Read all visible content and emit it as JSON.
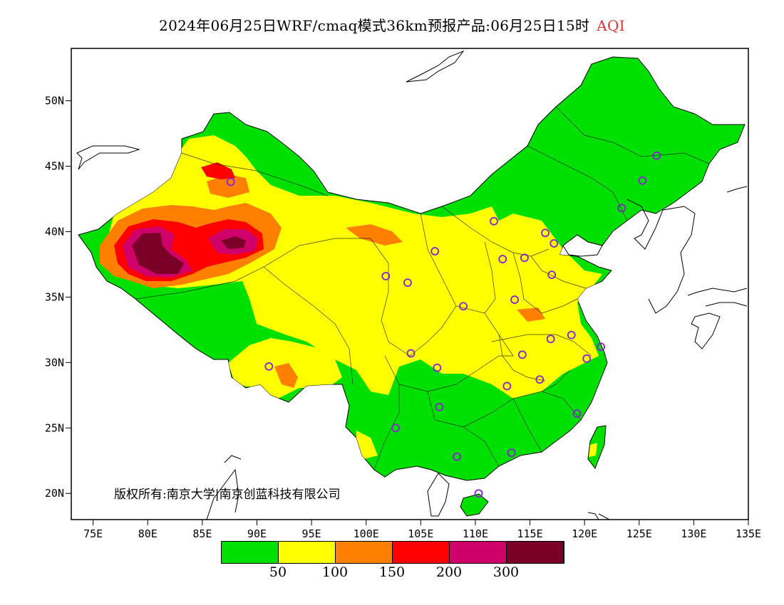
{
  "title": {
    "main": "2024年06月25日WRF/cmaq模式36km预报产品:06月25日15时",
    "variable": "AQI"
  },
  "copyright": "版权所有:南京大学|南京创蓝科技有限公司",
  "axes": {
    "lat_ticks": [
      "50N",
      "45N",
      "40N",
      "35N",
      "30N",
      "25N",
      "20N"
    ],
    "lon_ticks": [
      "75E",
      "80E",
      "85E",
      "90E",
      "95E",
      "100E",
      "105E",
      "110E",
      "115E",
      "120E",
      "125E",
      "130E",
      "135E"
    ],
    "lon_range": [
      73,
      135
    ],
    "lat_range": [
      18,
      54
    ]
  },
  "legend": {
    "colors": [
      "#00e000",
      "#ffff00",
      "#ff8000",
      "#ff0000",
      "#d0006a",
      "#7a0028"
    ],
    "ticks": [
      "50",
      "100",
      "150",
      "200",
      "300"
    ]
  },
  "stations": [
    [
      87.6,
      43.8
    ],
    [
      101.8,
      36.6
    ],
    [
      103.8,
      36.1
    ],
    [
      106.3,
      38.5
    ],
    [
      111.7,
      40.8
    ],
    [
      116.4,
      39.9
    ],
    [
      117.2,
      39.1
    ],
    [
      114.5,
      38.0
    ],
    [
      112.5,
      37.9
    ],
    [
      117.0,
      36.7
    ],
    [
      113.6,
      34.8
    ],
    [
      108.9,
      34.3
    ],
    [
      116.9,
      31.8
    ],
    [
      118.8,
      32.1
    ],
    [
      121.5,
      31.2
    ],
    [
      120.2,
      30.3
    ],
    [
      114.3,
      30.6
    ],
    [
      112.9,
      28.2
    ],
    [
      115.9,
      28.7
    ],
    [
      119.3,
      26.1
    ],
    [
      113.3,
      23.1
    ],
    [
      108.3,
      22.8
    ],
    [
      110.3,
      20.0
    ],
    [
      102.7,
      25.0
    ],
    [
      106.7,
      26.6
    ],
    [
      106.5,
      29.6
    ],
    [
      104.1,
      30.7
    ],
    [
      91.1,
      29.7
    ],
    [
      123.4,
      41.8
    ],
    [
      125.3,
      43.9
    ],
    [
      126.6,
      45.8
    ]
  ]
}
